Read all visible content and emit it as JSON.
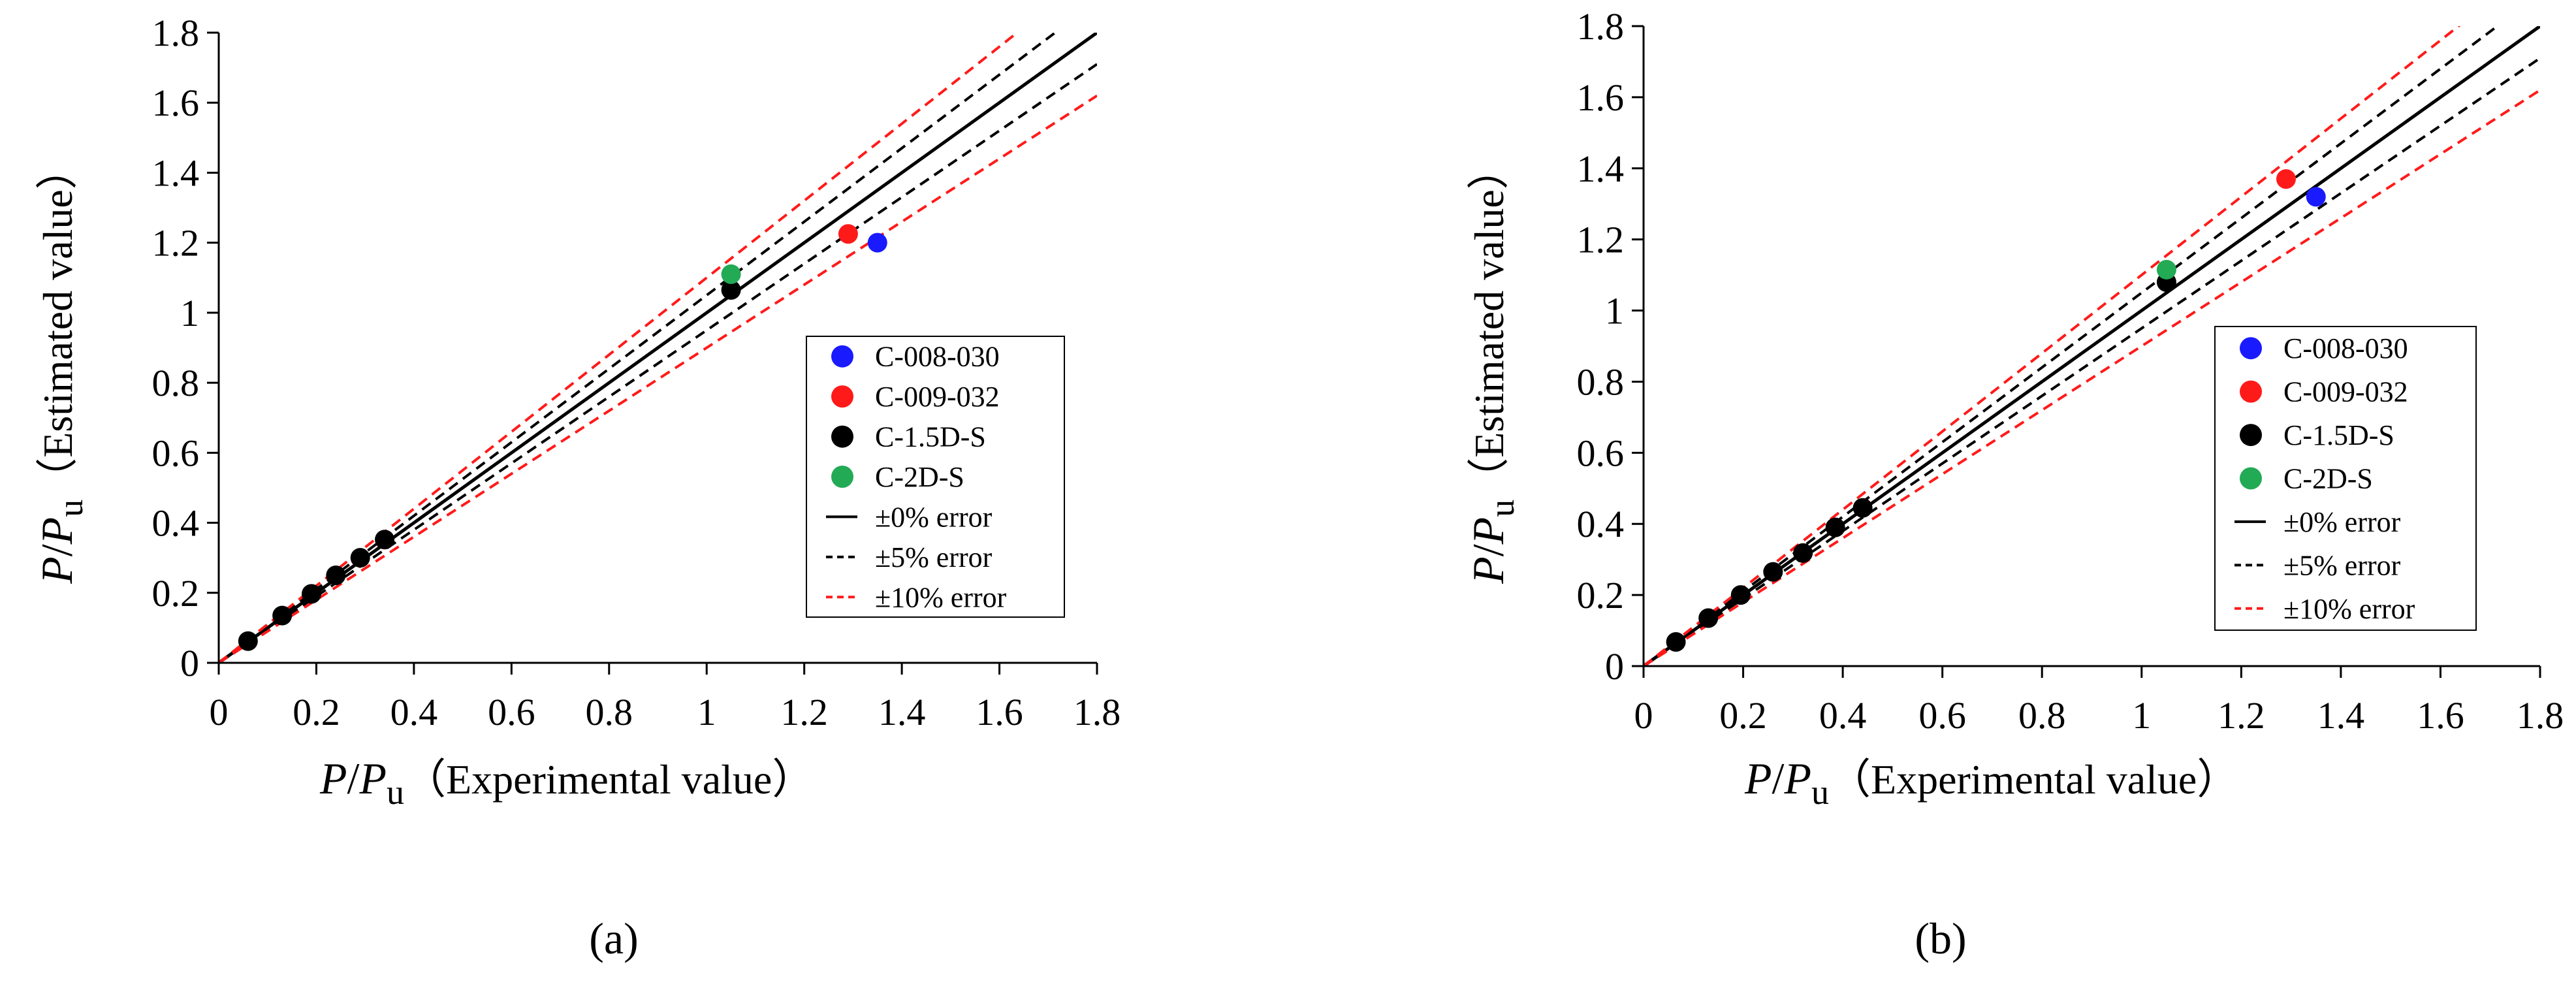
{
  "chart_data": [
    {
      "id": "a",
      "type": "scatter",
      "caption": "(a)",
      "xlabel": {
        "var": "P",
        "slash": "/",
        "var2": "P",
        "sub": "u",
        "text": "（Experimental value）"
      },
      "ylabel": {
        "var": "P",
        "slash": "/",
        "var2": "P",
        "sub": "u",
        "text": "（Estimated value）"
      },
      "xlim": [
        0,
        1.8
      ],
      "ylim": [
        0,
        1.8
      ],
      "xticks": [
        "0",
        "0.2",
        "0.4",
        "0.6",
        "0.8",
        "1",
        "1.2",
        "1.4",
        "1.6",
        "1.8"
      ],
      "yticks": [
        "0",
        "0.2",
        "0.4",
        "0.6",
        "0.8",
        "1",
        "1.2",
        "1.4",
        "1.6",
        "1.8"
      ],
      "series": [
        {
          "name": "C-008-030",
          "color": "#1a1aff",
          "points": [
            [
              1.35,
              1.2
            ]
          ]
        },
        {
          "name": "C-009-032",
          "color": "#ff1a1a",
          "points": [
            [
              1.29,
              1.225
            ]
          ]
        },
        {
          "name": "C-1.5D-S",
          "color": "#000000",
          "points": [
            [
              0.06,
              0.062
            ],
            [
              0.13,
              0.135
            ],
            [
              0.19,
              0.197
            ],
            [
              0.24,
              0.25
            ],
            [
              0.29,
              0.3
            ],
            [
              0.34,
              0.352
            ],
            [
              1.05,
              1.065
            ]
          ]
        },
        {
          "name": "C-2D-S",
          "color": "#22aa55",
          "points": [
            [
              1.05,
              1.11
            ]
          ]
        }
      ],
      "reference_lines": [
        {
          "label": "±0% error",
          "factors": [
            1.0
          ],
          "color": "#000000",
          "dash": "solid"
        },
        {
          "label": "±5% error",
          "factors": [
            1.05,
            0.95
          ],
          "color": "#000000",
          "dash": "dashed"
        },
        {
          "label": "±10% error",
          "factors": [
            1.1,
            0.9
          ],
          "color": "#ff1a1a",
          "dash": "dashed"
        }
      ]
    },
    {
      "id": "b",
      "type": "scatter",
      "caption": "(b)",
      "xlabel": {
        "var": "P",
        "slash": "/",
        "var2": "P",
        "sub": "u",
        "text": "（Experimental value）"
      },
      "ylabel": {
        "var": "P",
        "slash": "/",
        "var2": "P",
        "sub": "u",
        "text": "（Estimated value）"
      },
      "xlim": [
        0,
        1.8
      ],
      "ylim": [
        0,
        1.8
      ],
      "xticks": [
        "0",
        "0.2",
        "0.4",
        "0.6",
        "0.8",
        "1",
        "1.2",
        "1.4",
        "1.6",
        "1.8"
      ],
      "yticks": [
        "0",
        "0.2",
        "0.4",
        "0.6",
        "0.8",
        "1",
        "1.2",
        "1.4",
        "1.6",
        "1.8"
      ],
      "series": [
        {
          "name": "C-008-030",
          "color": "#1a1aff",
          "points": [
            [
              1.35,
              1.32
            ]
          ]
        },
        {
          "name": "C-009-032",
          "color": "#ff1a1a",
          "points": [
            [
              1.29,
              1.37
            ]
          ]
        },
        {
          "name": "C-1.5D-S",
          "color": "#000000",
          "points": [
            [
              0.065,
              0.068
            ],
            [
              0.13,
              0.135
            ],
            [
              0.195,
              0.2
            ],
            [
              0.26,
              0.265
            ],
            [
              0.32,
              0.318
            ],
            [
              0.385,
              0.39
            ],
            [
              0.44,
              0.445
            ],
            [
              1.05,
              1.08
            ]
          ]
        },
        {
          "name": "C-2D-S",
          "color": "#22aa55",
          "points": [
            [
              1.05,
              1.115
            ]
          ]
        }
      ],
      "reference_lines": [
        {
          "label": "±0% error",
          "factors": [
            1.0
          ],
          "color": "#000000",
          "dash": "solid"
        },
        {
          "label": "±5% error",
          "factors": [
            1.05,
            0.95
          ],
          "color": "#000000",
          "dash": "dashed"
        },
        {
          "label": "±10% error",
          "factors": [
            1.1,
            0.9
          ],
          "color": "#ff1a1a",
          "dash": "dashed"
        }
      ]
    }
  ]
}
